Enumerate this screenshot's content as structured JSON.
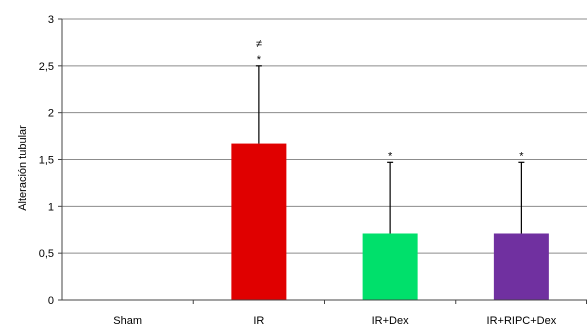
{
  "chart_data": {
    "type": "bar",
    "title": "",
    "xlabel": "",
    "ylabel": "Alteración tubular",
    "categories": [
      "Sham",
      "IR",
      "IR+Dex",
      "IR+RIPC+Dex"
    ],
    "values": [
      0,
      1.67,
      0.71,
      0.71
    ],
    "error_upper": [
      0,
      2.5,
      1.47,
      1.47
    ],
    "colors": [
      "#ffffff",
      "#e00000",
      "#00e06b",
      "#7030a0"
    ],
    "annotations": [
      [],
      [
        "≠",
        "*"
      ],
      [
        "*"
      ],
      [
        "*"
      ]
    ],
    "ylim": [
      0,
      3
    ],
    "yticks": [
      0,
      0.5,
      1,
      1.5,
      2,
      2.5,
      3
    ],
    "ytick_labels": [
      "0",
      "0,5",
      "1",
      "1,5",
      "2",
      "2,5",
      "3"
    ],
    "grid": true,
    "legend": "none"
  }
}
